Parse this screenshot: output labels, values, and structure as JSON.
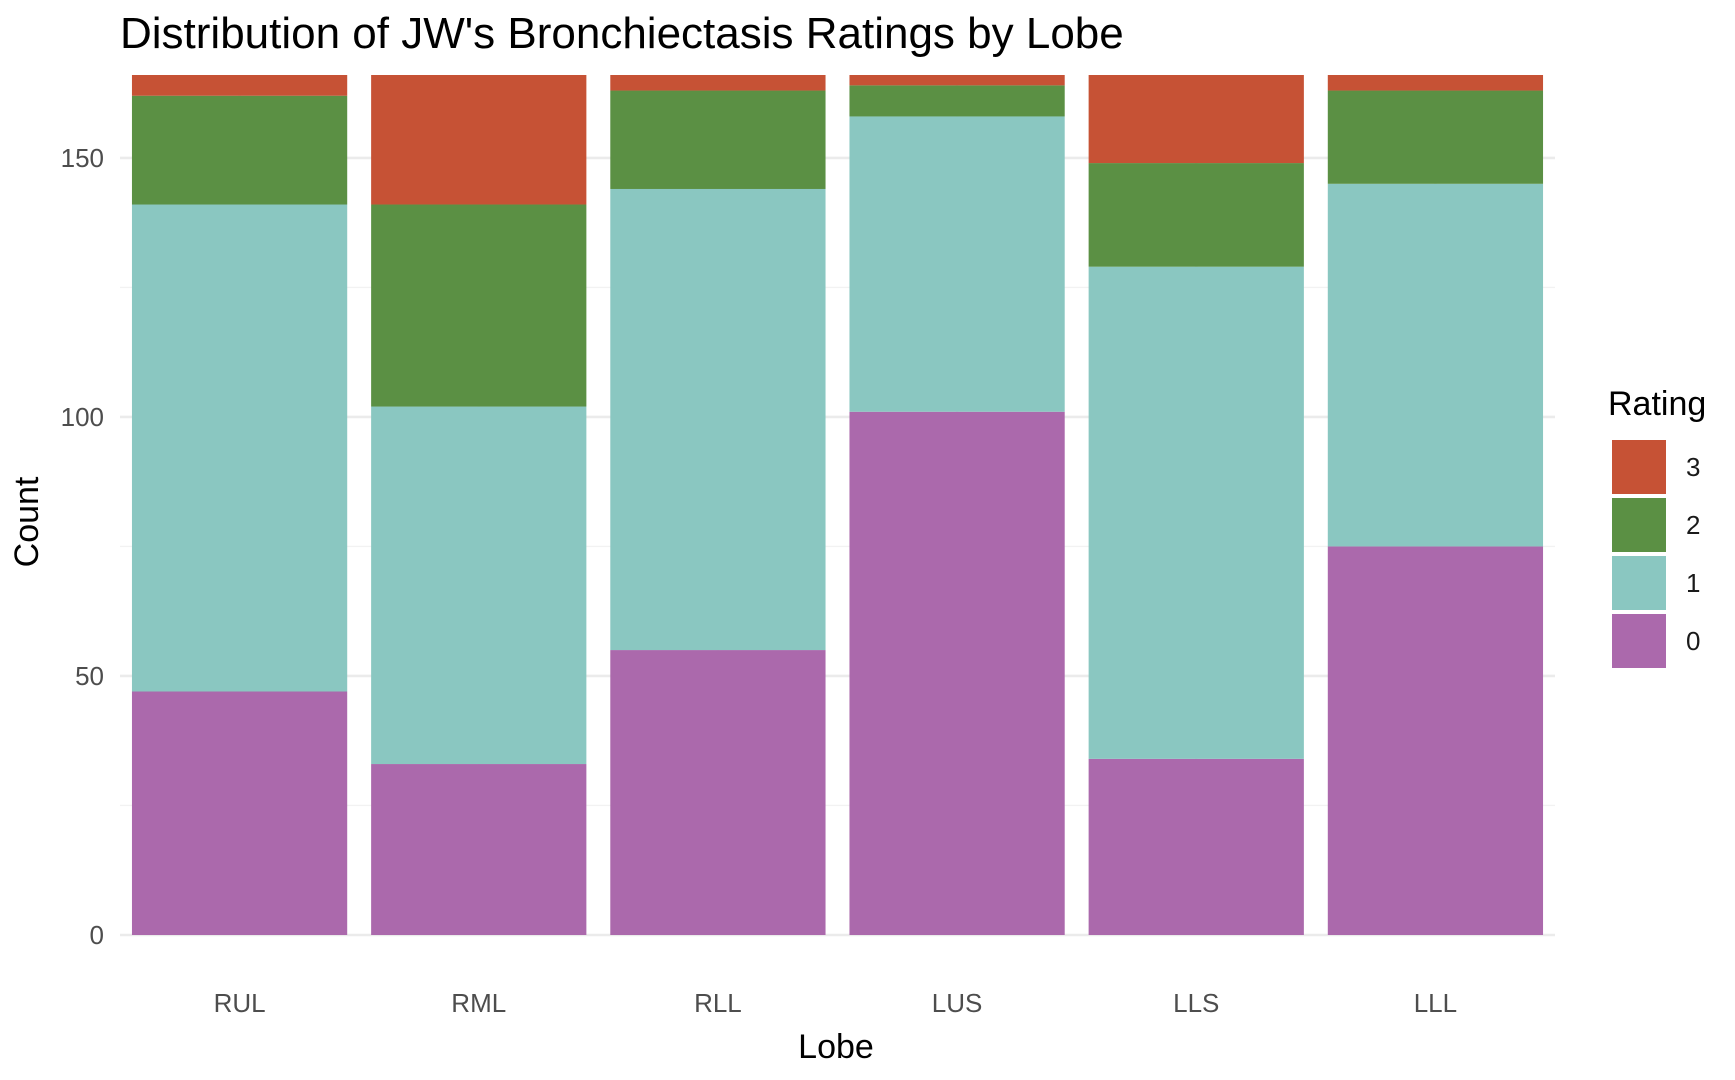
{
  "chart_data": {
    "type": "bar",
    "stacked": true,
    "title": "Distribution of JW's Bronchiectasis Ratings by Lobe",
    "xlabel": "Lobe",
    "ylabel": "Count",
    "categories": [
      "RUL",
      "RML",
      "RLL",
      "LUS",
      "LLS",
      "LLL"
    ],
    "ylim": [
      0,
      166
    ],
    "yticks": [
      0,
      50,
      100,
      150
    ],
    "grid": true,
    "legend": {
      "title": "Rating",
      "position": "right",
      "order": [
        "3",
        "2",
        "1",
        "0"
      ]
    },
    "series": [
      {
        "name": "0",
        "color": "#AB69AC",
        "values": [
          47,
          33,
          55,
          101,
          34,
          75
        ]
      },
      {
        "name": "1",
        "color": "#8AC7C1",
        "values": [
          94,
          69,
          89,
          57,
          95,
          70
        ]
      },
      {
        "name": "2",
        "color": "#5B9044",
        "values": [
          21,
          39,
          19,
          6,
          20,
          18
        ]
      },
      {
        "name": "3",
        "color": "#C65235",
        "values": [
          4,
          25,
          3,
          2,
          17,
          3
        ]
      }
    ]
  }
}
